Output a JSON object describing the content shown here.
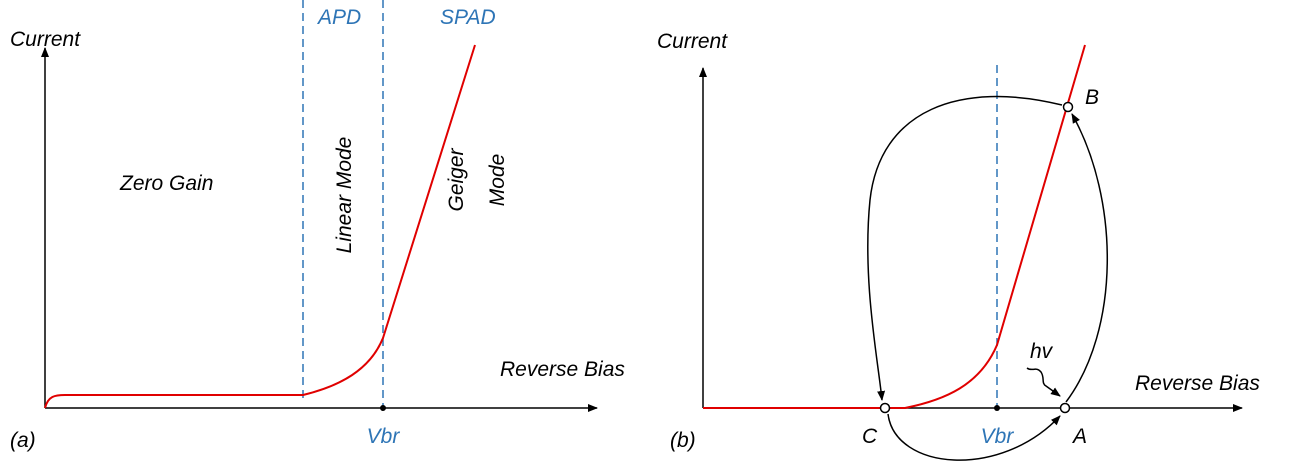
{
  "panel_a": {
    "y_label": "Current",
    "x_label": "Reverse Bias",
    "zero_gain": "Zero Gain",
    "linear_mode": "Linear Mode",
    "geiger_mode": [
      "Geiger",
      "Mode"
    ],
    "apd": "APD",
    "spad": "SPAD",
    "vbr": "Vbr",
    "tag": "(a)"
  },
  "panel_b": {
    "y_label": "Current",
    "x_label": "Reverse Bias",
    "vbr": "Vbr",
    "point_b": "B",
    "point_c": "C",
    "point_a": "A",
    "photon": "hv",
    "tag": "(b)"
  }
}
